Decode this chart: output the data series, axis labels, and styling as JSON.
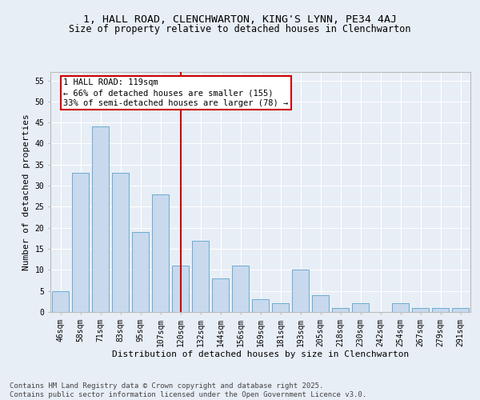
{
  "title_line1": "1, HALL ROAD, CLENCHWARTON, KING'S LYNN, PE34 4AJ",
  "title_line2": "Size of property relative to detached houses in Clenchwarton",
  "xlabel": "Distribution of detached houses by size in Clenchwarton",
  "ylabel": "Number of detached properties",
  "categories": [
    "46sqm",
    "58sqm",
    "71sqm",
    "83sqm",
    "95sqm",
    "107sqm",
    "120sqm",
    "132sqm",
    "144sqm",
    "156sqm",
    "169sqm",
    "181sqm",
    "193sqm",
    "205sqm",
    "218sqm",
    "230sqm",
    "242sqm",
    "254sqm",
    "267sqm",
    "279sqm",
    "291sqm"
  ],
  "values": [
    5,
    33,
    44,
    33,
    19,
    28,
    11,
    17,
    8,
    11,
    3,
    2,
    10,
    4,
    1,
    2,
    0,
    2,
    1,
    1,
    1
  ],
  "bar_color": "#c8d9ed",
  "bar_edge_color": "#6aabd2",
  "background_color": "#e8eef6",
  "grid_color": "#ffffff",
  "vline_index": 6,
  "vline_color": "#cc0000",
  "annotation_text": "1 HALL ROAD: 119sqm\n← 66% of detached houses are smaller (155)\n33% of semi-detached houses are larger (78) →",
  "annotation_box_color": "#cc0000",
  "ylim": [
    0,
    57
  ],
  "yticks": [
    0,
    5,
    10,
    15,
    20,
    25,
    30,
    35,
    40,
    45,
    50,
    55
  ],
  "footer_text": "Contains HM Land Registry data © Crown copyright and database right 2025.\nContains public sector information licensed under the Open Government Licence v3.0.",
  "title_fontsize": 9.5,
  "subtitle_fontsize": 8.5,
  "axis_label_fontsize": 8,
  "tick_fontsize": 7,
  "annotation_fontsize": 7.5,
  "footer_fontsize": 6.5,
  "fig_bg_color": "#e8eef6"
}
